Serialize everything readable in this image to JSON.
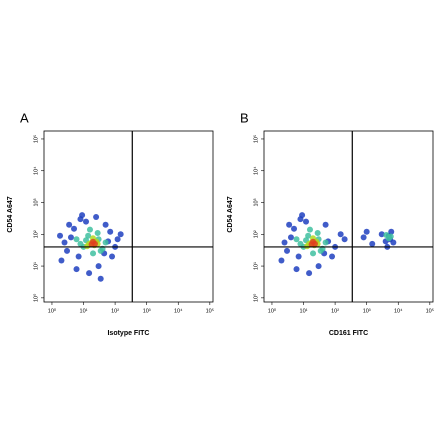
{
  "chart_data": [
    {
      "type": "scatter",
      "title": "A",
      "xlabel": "Isotype FITC",
      "ylabel": "CD54 A647",
      "log_x": true,
      "log_y": true,
      "xlim": [
        0.56,
        126000
      ],
      "ylim": [
        0.74,
        178000
      ],
      "xticks": [
        {
          "value": 1,
          "label": "10⁰"
        },
        {
          "value": 10,
          "label": "10¹"
        },
        {
          "value": 100,
          "label": "10²"
        },
        {
          "value": 1000,
          "label": "10³"
        },
        {
          "value": 10000,
          "label": "10⁴"
        },
        {
          "value": 100000,
          "label": "10⁵"
        }
      ],
      "yticks": [
        {
          "value": 1,
          "label": "10⁰"
        },
        {
          "value": 10,
          "label": "10¹"
        },
        {
          "value": 100,
          "label": "10²"
        },
        {
          "value": 1000,
          "label": "10³"
        },
        {
          "value": 10000,
          "label": "10⁴"
        },
        {
          "value": 100000,
          "label": "10⁵"
        }
      ],
      "quadrant": {
        "x": 350,
        "y": 40
      },
      "series": [
        {
          "color": "#1f3fbf",
          "x": [
            3,
            5,
            60,
            80,
            4,
            8,
            50,
            2,
            100,
            6,
            15,
            30,
            9,
            150,
            2.5,
            7,
            45,
            120,
            3.5,
            12,
            25,
            70,
            1.8,
            35
          ],
          "values": [
            30,
            150,
            60,
            20,
            80,
            300,
            200,
            15,
            40,
            8,
            6,
            10,
            400,
            100,
            55,
            20,
            25,
            70,
            200,
            250,
            350,
            120,
            90,
            4
          ]
        },
        {
          "color": "#40c0a0",
          "x": [
            10,
            30,
            14,
            40,
            20,
            12,
            28,
            8,
            50,
            16,
            6,
            35
          ],
          "values": [
            40,
            70,
            90,
            35,
            25,
            65,
            110,
            50,
            55,
            140,
            70,
            30
          ]
        },
        {
          "color": "#b0d820",
          "x": [
            18,
            22,
            25,
            15,
            20,
            28,
            13
          ],
          "values": [
            55,
            45,
            60,
            50,
            75,
            50,
            42
          ]
        },
        {
          "color": "#e04020",
          "x": [
            20,
            23,
            18
          ],
          "values": [
            58,
            50,
            48
          ]
        }
      ]
    },
    {
      "type": "scatter",
      "title": "B",
      "xlabel": "CD161 FITC",
      "ylabel": "CD54 A647",
      "log_x": true,
      "log_y": true,
      "xlim": [
        0.56,
        126000
      ],
      "ylim": [
        0.74,
        178000
      ],
      "xticks": [
        {
          "value": 1,
          "label": "10⁰"
        },
        {
          "value": 10,
          "label": "10¹"
        },
        {
          "value": 100,
          "label": "10²"
        },
        {
          "value": 1000,
          "label": "10³"
        },
        {
          "value": 10000,
          "label": "10⁴"
        },
        {
          "value": 100000,
          "label": "10⁵"
        }
      ],
      "yticks": [
        {
          "value": 1,
          "label": "10⁰"
        },
        {
          "value": 10,
          "label": "10¹"
        },
        {
          "value": 100,
          "label": "10²"
        },
        {
          "value": 1000,
          "label": "10³"
        },
        {
          "value": 10000,
          "label": "10⁴"
        },
        {
          "value": 100000,
          "label": "10⁵"
        }
      ],
      "quadrant": {
        "x": 350,
        "y": 40
      },
      "series": [
        {
          "color": "#1f3fbf",
          "x": [
            3,
            5,
            60,
            80,
            4,
            8,
            50,
            2,
            100,
            6,
            15,
            30,
            9,
            150,
            2.5,
            7,
            45,
            200,
            3.5,
            12,
            800,
            1500,
            3000,
            4000,
            5000,
            6000,
            4500,
            5500,
            1000,
            7000
          ],
          "values": [
            30,
            150,
            60,
            20,
            80,
            300,
            200,
            15,
            40,
            8,
            6,
            10,
            400,
            100,
            55,
            20,
            25,
            70,
            200,
            250,
            80,
            50,
            100,
            60,
            90,
            120,
            40,
            70,
            120,
            55
          ]
        },
        {
          "color": "#40c0a0",
          "x": [
            10,
            30,
            14,
            40,
            20,
            12,
            28,
            8,
            50,
            16,
            6,
            35,
            5000,
            4200,
            5800
          ],
          "values": [
            40,
            70,
            90,
            35,
            25,
            65,
            110,
            50,
            55,
            140,
            70,
            30,
            75,
            95,
            85
          ]
        },
        {
          "color": "#b0d820",
          "x": [
            18,
            22,
            25,
            15,
            20,
            28,
            13
          ],
          "values": [
            55,
            45,
            60,
            50,
            75,
            50,
            42
          ]
        },
        {
          "color": "#e04020",
          "x": [
            20,
            23,
            18
          ],
          "values": [
            58,
            50,
            48
          ]
        }
      ]
    }
  ]
}
